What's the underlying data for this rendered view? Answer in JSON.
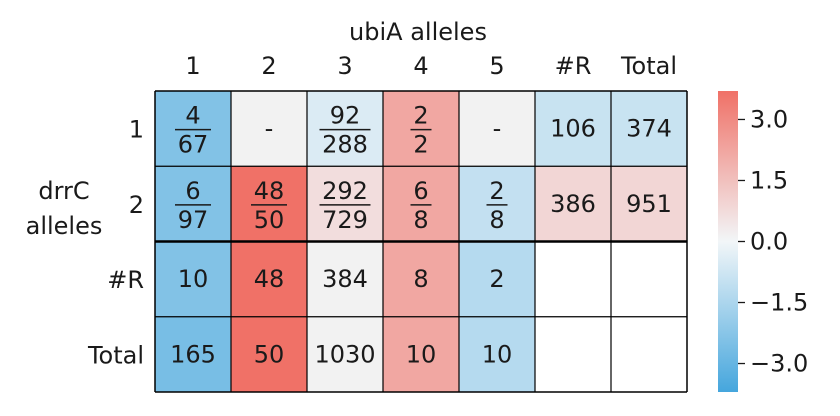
{
  "chart_data": {
    "type": "heatmap",
    "x_title": "ubiA alleles",
    "y_title": [
      "drrC",
      "alleles"
    ],
    "x_labels": [
      "1",
      "2",
      "3",
      "4",
      "5",
      "#R",
      "Total"
    ],
    "y_labels": [
      "1",
      "2",
      "#R",
      "Total"
    ],
    "cells": [
      [
        {
          "num": "4",
          "den": "67",
          "v": -2.4
        },
        {
          "text": "-",
          "v": null
        },
        {
          "num": "92",
          "den": "288",
          "v": -0.5
        },
        {
          "num": "2",
          "den": "2",
          "v": 2.2
        },
        {
          "text": "-",
          "v": null
        },
        {
          "text": "106",
          "v": -0.9
        },
        {
          "text": "374",
          "v": -0.9
        }
      ],
      [
        {
          "num": "6",
          "den": "97",
          "v": -2.4
        },
        {
          "num": "48",
          "den": "50",
          "v": 3.7
        },
        {
          "num": "292",
          "den": "729",
          "v": 0.7
        },
        {
          "num": "6",
          "den": "8",
          "v": 2.2
        },
        {
          "num": "2",
          "den": "8",
          "v": -1.0
        },
        {
          "text": "386",
          "v": 0.9
        },
        {
          "text": "951",
          "v": 0.9
        }
      ],
      [
        {
          "text": "10",
          "v": -2.4
        },
        {
          "text": "48",
          "v": 3.7
        },
        {
          "text": "384",
          "v": null
        },
        {
          "text": "8",
          "v": 2.2
        },
        {
          "text": "2",
          "v": -1.3
        },
        {
          "text": "",
          "v": "blank"
        },
        {
          "text": "",
          "v": "blank"
        }
      ],
      [
        {
          "text": "165",
          "v": -2.6
        },
        {
          "text": "50",
          "v": 3.7
        },
        {
          "text": "1030",
          "v": null
        },
        {
          "text": "10",
          "v": 2.2
        },
        {
          "text": "10",
          "v": -1.3
        },
        {
          "text": "",
          "v": "blank"
        },
        {
          "text": "",
          "v": "blank"
        }
      ]
    ],
    "colorbar": {
      "range": [
        -3.7,
        3.7
      ],
      "ticks": [
        3.0,
        1.5,
        0.0,
        -1.5,
        -3.0
      ],
      "tick_labels": [
        "3.0",
        "1.5",
        "0.0",
        "−1.5",
        "−3.0"
      ],
      "low_color": "#45a6dd",
      "mid_color": "#f2f6f8",
      "high_color": "#f07167"
    },
    "null_color": "#f2f2f2",
    "blank_color": "#ffffff"
  }
}
